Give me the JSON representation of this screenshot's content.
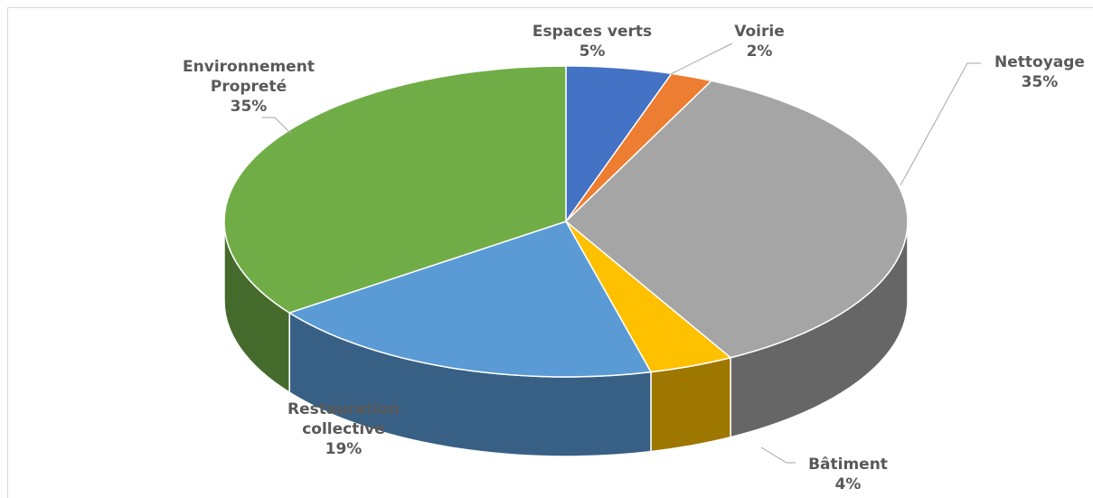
{
  "chart_data": {
    "type": "pie3d",
    "categories": [
      "Espaces verts",
      "Voirie",
      "Nettoyage",
      "Bâtiment",
      "Restauration collective",
      "Environnement Propreté"
    ],
    "values": [
      5,
      2,
      35,
      4,
      19,
      35
    ],
    "value_labels": [
      "5%",
      "2%",
      "35%",
      "4%",
      "19%",
      "35%"
    ],
    "colors": [
      "#4472c4",
      "#ed7d31",
      "#a5a5a5",
      "#ffc000",
      "#5b9bd5",
      "#70ad47"
    ]
  }
}
